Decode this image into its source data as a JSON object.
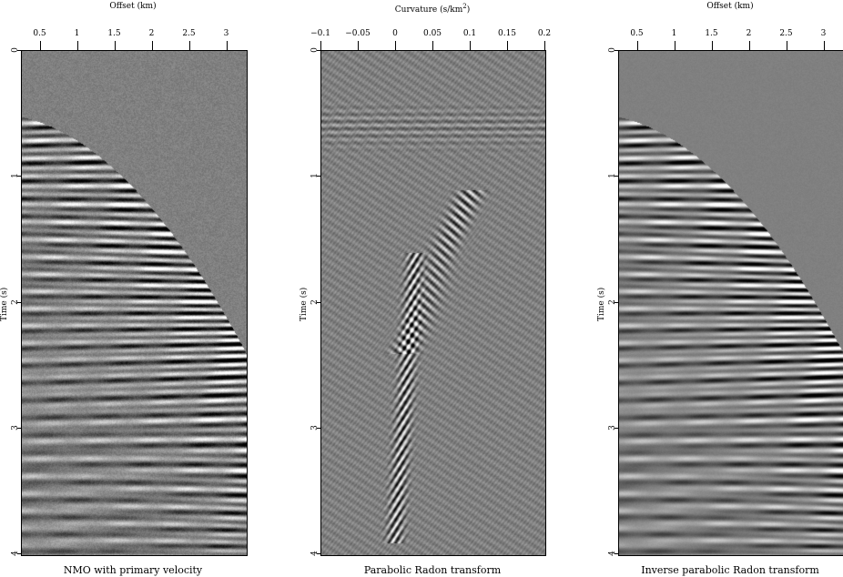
{
  "chart_data": [
    {
      "type": "heatmap",
      "caption": "NMO with primary velocity",
      "xlabel": "Offset (km)",
      "ylabel": "Time (s)",
      "xlim": [
        0.25,
        3.25
      ],
      "ylim": [
        4,
        0
      ],
      "xticks": [
        "0.5",
        "1",
        "1.5",
        "2",
        "2.5",
        "3"
      ],
      "yticks": [
        "0",
        "1",
        "2",
        "3",
        "4"
      ],
      "axis_position": "top",
      "colormap": "grayscale"
    },
    {
      "type": "heatmap",
      "caption": "Parabolic Radon transform",
      "xlabel": "Curvature (s/km",
      "xlabel_sup": "2",
      "xlabel_end": ")",
      "ylabel": "Time (s)",
      "xlim": [
        -0.1,
        0.2
      ],
      "ylim": [
        4,
        0
      ],
      "xticks": [
        "−0.1",
        "−0.05",
        "0",
        "0.05",
        "0.1",
        "0.15",
        "0.2"
      ],
      "yticks": [
        "0",
        "1",
        "2",
        "3",
        "4"
      ],
      "axis_position": "top",
      "colormap": "grayscale"
    },
    {
      "type": "heatmap",
      "caption": "Inverse parabolic Radon transform",
      "xlabel": "Offset (km)",
      "ylabel": "Time (s)",
      "xlim": [
        0.25,
        3.25
      ],
      "ylim": [
        4,
        0
      ],
      "xticks": [
        "0.5",
        "1",
        "1.5",
        "2",
        "2.5",
        "3"
      ],
      "yticks": [
        "0",
        "1",
        "2",
        "3",
        "4"
      ],
      "axis_position": "top",
      "colormap": "grayscale"
    }
  ]
}
